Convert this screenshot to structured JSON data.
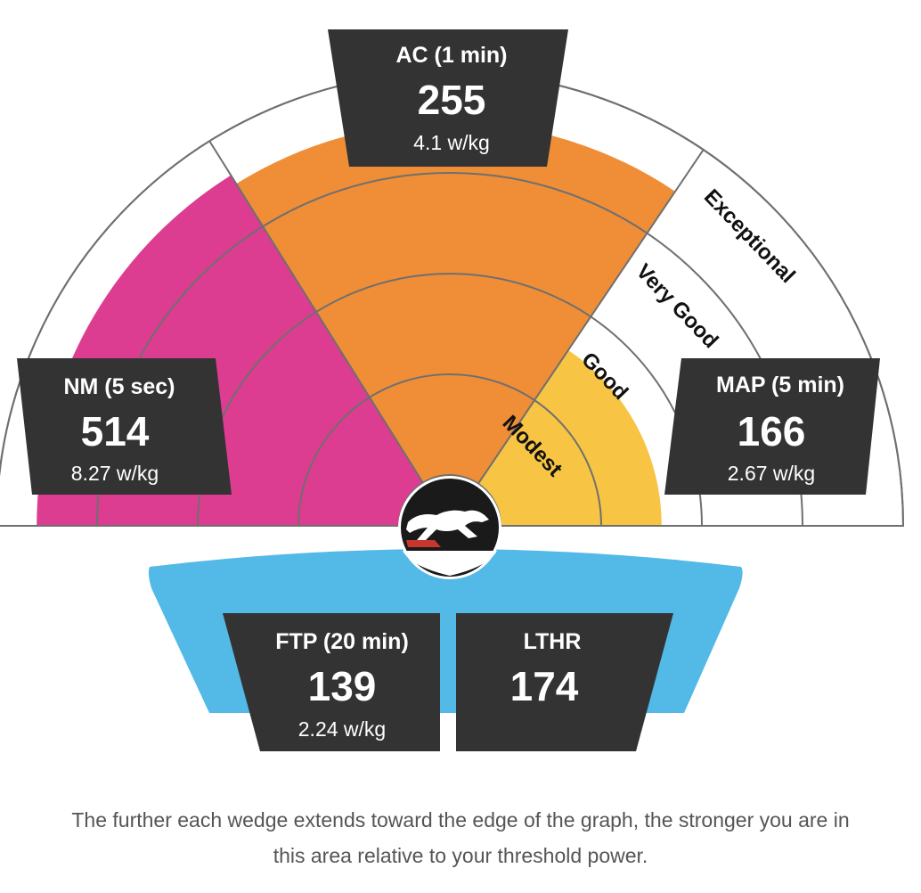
{
  "colors": {
    "nm": "#dc3d91",
    "ac": "#ef8e36",
    "map": "#f7c443",
    "ftp": "#53b9e6",
    "card": "#333333",
    "ring": "#6f6f6f"
  },
  "chart_data": {
    "type": "radial-wedge",
    "levels": [
      "Modest",
      "Good",
      "Very Good",
      "Exceptional"
    ],
    "level_max": 4,
    "wedges": [
      {
        "key": "nm",
        "label": "NM (5 sec)",
        "value": "514",
        "wkg": "8.27 w/kg",
        "level": 3.6
      },
      {
        "key": "ac",
        "label": "AC (1 min)",
        "value": "255",
        "wkg": "4.1 w/kg",
        "level": 3.5
      },
      {
        "key": "map",
        "label": "MAP (5 min)",
        "value": "166",
        "wkg": "2.67 w/kg",
        "level": 1.6
      }
    ],
    "base": [
      {
        "key": "ftp",
        "label": "FTP (20 min)",
        "value": "139",
        "wkg": "2.24 w/kg"
      },
      {
        "key": "lthr",
        "label": "LTHR",
        "value": "174",
        "wkg": ""
      }
    ]
  },
  "logo_icon": "cheetah-logo-icon",
  "footnote": "The further each wedge extends toward the edge of the graph, the stronger you are in this area relative to your threshold power."
}
